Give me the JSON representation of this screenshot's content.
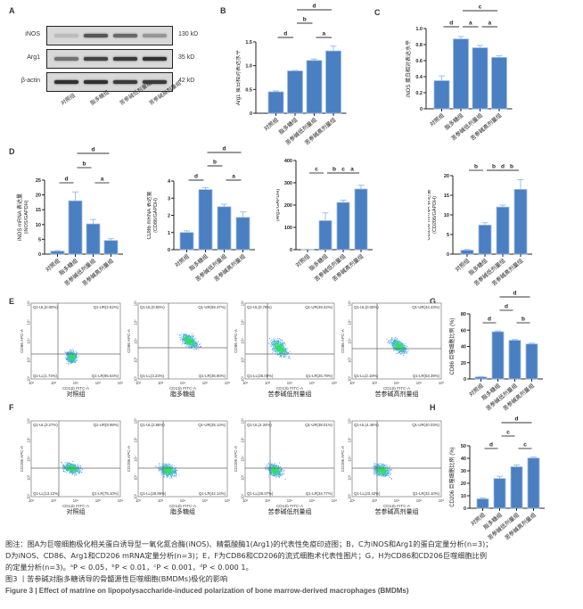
{
  "panels": {
    "A": "A",
    "B": "B",
    "C": "C",
    "D": "D",
    "E": "E",
    "F": "F",
    "G": "G",
    "H": "H"
  },
  "groups": [
    "对照组",
    "脂多糖组",
    "苦参碱低剂量组",
    "苦参碱高剂量组"
  ],
  "western_blot": {
    "rows": [
      {
        "protein": "iNOS",
        "size": "130 kD",
        "intensity": [
          0.15,
          0.7,
          0.6,
          0.35
        ]
      },
      {
        "protein": "Arg1",
        "size": "35 kD",
        "intensity": [
          0.55,
          0.8,
          0.85,
          0.9
        ]
      },
      {
        "protein": "β-actin",
        "size": "42 kD",
        "intensity": [
          0.9,
          0.9,
          0.85,
          0.85
        ]
      }
    ]
  },
  "colors": {
    "bar": "#4a7fc1",
    "bar_edge": "#9dbde6",
    "sig_line": "#333333"
  },
  "chart_data": [
    {
      "id": "B",
      "type": "bar",
      "ylabel": "Arg1 蛋白相对表达水平",
      "categories": [
        "对照组",
        "脂多糖组",
        "苦参碱低剂量组",
        "苦参碱高剂量组"
      ],
      "values": [
        0.45,
        0.89,
        1.11,
        1.31
      ],
      "errors": [
        0.02,
        0.01,
        0.03,
        0.1
      ],
      "ylim": [
        0,
        1.5
      ],
      "yticks": [
        "0",
        "0.5",
        "1.0",
        "1.5"
      ],
      "ytick_values": [
        0,
        0.5,
        1.0,
        1.5
      ],
      "sig": [
        {
          "from": 0,
          "to": 1,
          "level": 0,
          "label": "d"
        },
        {
          "from": 2,
          "to": 3,
          "level": 0,
          "label": "a"
        },
        {
          "from": 1,
          "to": 2,
          "level": 1,
          "label": "b"
        },
        {
          "from": 1,
          "to": 3,
          "level": 2,
          "label": "d"
        }
      ]
    },
    {
      "id": "C",
      "type": "bar",
      "ylabel": "iNOS 蛋白相对表达水平",
      "categories": [
        "对照组",
        "脂多糖组",
        "苦参碱低剂量组",
        "苦参碱高剂量组"
      ],
      "values": [
        0.35,
        0.87,
        0.76,
        0.64
      ],
      "errors": [
        0.06,
        0.03,
        0.03,
        0.02
      ],
      "ylim": [
        0,
        1.0
      ],
      "yticks": [
        "0",
        "0.2",
        "0.4",
        "0.6",
        "0.8",
        "1.0"
      ],
      "ytick_values": [
        0,
        0.2,
        0.4,
        0.6,
        0.8,
        1.0
      ],
      "sig": [
        {
          "from": 0,
          "to": 1,
          "level": 0,
          "label": "d"
        },
        {
          "from": 1,
          "to": 2,
          "level": 0,
          "label": "a"
        },
        {
          "from": 2,
          "to": 3,
          "level": 0,
          "label": "a"
        },
        {
          "from": 1,
          "to": 3,
          "level": 1,
          "label": "c"
        }
      ]
    },
    {
      "id": "D1",
      "type": "bar",
      "ylabel": "iNOS mRNA 表达量",
      "ylabel2": "(iNOS/GAPDH)",
      "categories": [
        "对照组",
        "脂多糖组",
        "苦参碱低剂量组",
        "苦参碱高剂量组"
      ],
      "values": [
        1.0,
        18.0,
        10.2,
        4.6
      ],
      "errors": [
        0.2,
        3.0,
        1.5,
        0.6
      ],
      "ylim": [
        0,
        25
      ],
      "yticks": [
        "0",
        "5",
        "10",
        "15",
        "20",
        "25"
      ],
      "ytick_values": [
        0,
        5,
        10,
        15,
        20,
        25
      ],
      "sig": [
        {
          "from": 0,
          "to": 1,
          "level": 0,
          "label": "d"
        },
        {
          "from": 2,
          "to": 3,
          "level": 0,
          "label": "a"
        },
        {
          "from": 1,
          "to": 2,
          "level": 1,
          "label": "b"
        },
        {
          "from": 1,
          "to": 3,
          "level": 2,
          "label": "d"
        }
      ]
    },
    {
      "id": "D2",
      "type": "bar",
      "ylabel": "CD86 mRNA 表达量",
      "ylabel2": "(CD86/GAPDH)",
      "categories": [
        "对照组",
        "脂多糖组",
        "苦参碱低剂量组",
        "苦参碱高剂量组"
      ],
      "values": [
        1.0,
        3.5,
        2.5,
        1.88
      ],
      "errors": [
        0.1,
        0.12,
        0.15,
        0.32
      ],
      "ylim": [
        0,
        4
      ],
      "yticks": [
        "0",
        "1",
        "2",
        "3",
        "4"
      ],
      "ytick_values": [
        0,
        1,
        2,
        3,
        4
      ],
      "sig": [
        {
          "from": 0,
          "to": 1,
          "level": 0,
          "label": "d"
        },
        {
          "from": 2,
          "to": 3,
          "level": 0,
          "label": "a"
        },
        {
          "from": 1,
          "to": 2,
          "level": 1,
          "label": "b"
        },
        {
          "from": 1,
          "to": 3,
          "level": 2,
          "label": "d"
        }
      ]
    },
    {
      "id": "D3",
      "type": "bar",
      "ylabel": "Arg1 mRNA 表达量",
      "ylabel2": "(Arg1/GAPDH)",
      "categories": [
        "对照组",
        "脂多糖组",
        "苦参碱低剂量组",
        "苦参碱高剂量组"
      ],
      "values": [
        1,
        130,
        212,
        272
      ],
      "errors": [
        0.5,
        35,
        10,
        17
      ],
      "ylim": [
        0,
        400
      ],
      "yticks": [
        "0",
        "100",
        "200",
        "300",
        "400"
      ],
      "ytick_values": [
        0,
        100,
        200,
        300,
        400
      ],
      "sig": [
        {
          "from": 0,
          "to": 1,
          "level": 0,
          "label": "c"
        },
        {
          "from": 1,
          "to": 2,
          "level": 0,
          "label": "b"
        },
        {
          "from": 2,
          "to": 3,
          "level": 0,
          "label": "a"
        },
        {
          "from": 1,
          "to": 3,
          "level": 1,
          "label": "c"
        }
      ]
    },
    {
      "id": "D4",
      "type": "bar",
      "ylabel": "CD206 mRNA 表达量",
      "ylabel2": "(CD206/GAPDH)",
      "categories": [
        "对照组",
        "脂多糖组",
        "苦参碱低剂量组",
        "苦参碱高剂量组"
      ],
      "values": [
        1.0,
        7.4,
        12.0,
        16.5
      ],
      "errors": [
        0.2,
        0.6,
        0.5,
        2.5
      ],
      "ylim": [
        0,
        20
      ],
      "yticks": [
        "0",
        "5",
        "10",
        "15",
        "20"
      ],
      "ytick_values": [
        0,
        5,
        10,
        15,
        20
      ],
      "sig": [
        {
          "from": 0,
          "to": 1,
          "level": 0,
          "label": "b"
        },
        {
          "from": 1,
          "to": 2,
          "level": 0,
          "label": "b"
        },
        {
          "from": 2,
          "to": 3,
          "level": 0,
          "label": "b"
        },
        {
          "from": 1,
          "to": 3,
          "level": 1,
          "label": "d"
        }
      ]
    },
    {
      "id": "G",
      "type": "bar",
      "ylabel": "CD86 巨噬细胞比例 (%)",
      "categories": [
        "对照组",
        "脂多糖组",
        "苦参碱低剂量组",
        "苦参碱高剂量组"
      ],
      "values": [
        2.5,
        58,
        47.5,
        43
      ],
      "errors": [
        0.5,
        1.0,
        1.0,
        1.0
      ],
      "ylim": [
        0,
        80
      ],
      "yticks": [
        "0",
        "20",
        "40",
        "60",
        "80"
      ],
      "ytick_values": [
        0,
        20,
        40,
        60,
        80
      ],
      "sig": [
        {
          "from": 0,
          "to": 1,
          "level": 0,
          "label": "d"
        },
        {
          "from": 2,
          "to": 3,
          "level": 0,
          "label": "b"
        },
        {
          "from": 1,
          "to": 2,
          "level": 1,
          "label": "d"
        },
        {
          "from": 1,
          "to": 3,
          "level": 2,
          "label": "d"
        }
      ]
    },
    {
      "id": "H",
      "type": "bar",
      "ylabel": "CD206 巨噬细胞比例 (%)",
      "categories": [
        "对照组",
        "脂多糖组",
        "苦参碱低剂量组",
        "苦参碱高剂量组"
      ],
      "values": [
        7.5,
        23.8,
        33.2,
        40.2
      ],
      "errors": [
        0.8,
        1.8,
        1.5,
        0.8
      ],
      "ylim": [
        0,
        50
      ],
      "yticks": [
        "0",
        "10",
        "20",
        "30",
        "40",
        "50"
      ],
      "ytick_values": [
        0,
        10,
        20,
        30,
        40,
        50
      ],
      "sig": [
        {
          "from": 0,
          "to": 1,
          "level": 0,
          "label": "d"
        },
        {
          "from": 2,
          "to": 3,
          "level": 0,
          "label": "c"
        },
        {
          "from": 1,
          "to": 2,
          "level": 1,
          "label": "c"
        },
        {
          "from": 1,
          "to": 3,
          "level": 2,
          "label": "d"
        }
      ]
    }
  ],
  "flow": {
    "xlabel": "CD11b FITC-A",
    "xticks": [
      "10²",
      "10³",
      "10⁴",
      "10⁵",
      "10⁶"
    ],
    "yticks": [
      "10²",
      "10³",
      "10⁴",
      "10⁵",
      "10⁶"
    ],
    "E": {
      "ylabel": "CD86 APC-A",
      "plots": [
        {
          "title": "对照组",
          "UL": "Q1-UL(0.00%)",
          "UR": "Q1-UR(2.62%)",
          "LL": "Q1-LL(1.74%)",
          "LR": "Q1-LR(95.64%)"
        },
        {
          "title": "脂多糖组",
          "UL": "Q1-UL(0.50%)",
          "UR": "Q1-UR(59.37%)",
          "LL": "Q1-LL(3.23%)",
          "LR": "Q1-LR(36.90%)"
        },
        {
          "title": "苦参碱低剂量组",
          "UL": "Q1-UL(0.79%)",
          "UR": "Q1-UR(48.42%)",
          "LL": "Q1-LL(25.00%)",
          "LR": "Q1-LR(25.79%)"
        },
        {
          "title": "苦参碱高剂量组",
          "UL": "Q1-UL(0.00%)",
          "UR": "Q1-UR(44.43%)",
          "LL": "Q1-LL(2.18%)",
          "LR": "Q1-LR(53.39%)"
        }
      ]
    },
    "F": {
      "ylabel": "CD206 APC-A",
      "plots": [
        {
          "title": "对照组",
          "UL": "Q1-UL(3.27%)",
          "UR": "Q1-UR(8.98%)",
          "LL": "Q1-LL(13.12%)",
          "LR": "Q1-LR(75.10%)"
        },
        {
          "title": "脂多糖组",
          "UL": "Q1-UL(2.86%)",
          "UR": "Q1-UR(25.14%)",
          "LL": "Q1-LL(28.86%)",
          "LR": "Q1-LR(42.14%)"
        },
        {
          "title": "苦参碱低剂量组",
          "UL": "Q1-UL(4.34%)",
          "UR": "Q1-UR(38.01%)",
          "LL": "Q1-LL(25.07%)",
          "LR": "Q1-LR(34.77%)"
        },
        {
          "title": "苦参碱高剂量组",
          "UL": "Q1-UL(4.46%)",
          "UR": "Q1-UR(40.03%)",
          "LL": "Q1-LL(23.42%)",
          "LR": "Q1-LR(32.10%)"
        }
      ]
    }
  },
  "caption": {
    "line1": "图注：图A为巨噬细胞极化相关蛋白诱导型一氧化氮合酶(iNOS)、精氨酸酶1(Arg1)的代表性免疫印迹图；B，C为iNOS和Arg1的蛋白定量分析(n=3)；",
    "line2": "D为iNOS、CD86、Arg1和CD206 mRNA定量分析(n=3)；E，F为CD86和CD206的流式细胞术代表性图片；G，H为CD86和CD206巨噬细胞比例",
    "line3": "的定量分析(n=3)。ᵃP < 0.05，ᵇP < 0.01，ᶜP < 0.001，ᵈP < 0.000 1。",
    "title_cn": "图3 丨苦参碱对脂多糖诱导的骨髓源性巨噬细胞(BMDMs)极化的影响",
    "title_en": "Figure 3 | Effect of matrine on lipopolysaccharide-induced polarization of bone marrow-derived macrophages (BMDMs)"
  }
}
